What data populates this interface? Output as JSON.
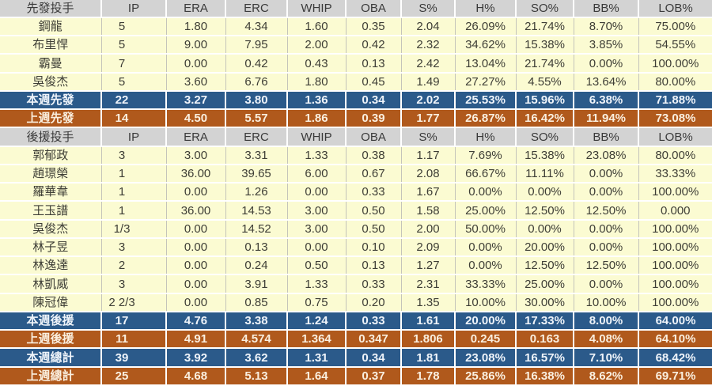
{
  "colors": {
    "header-bg": "#D3D3D3",
    "header-text": "#3A3A3A",
    "data-row-bg": "#FBFBD2",
    "data-text": "#3E3E36",
    "summary-week-bg": "#2B5A8A",
    "summary-week-text": "#EFF4FA",
    "summary-prev-bg": "#B0591C",
    "summary-prev-text": "#FAEFDF"
  },
  "chart_data": {
    "type": "table",
    "columns": [
      "先發投手",
      "IP",
      "ERA",
      "ERC",
      "WHIP",
      "OBA",
      "S%",
      "H%",
      "SO%",
      "BB%",
      "LOB%"
    ],
    "rows": [
      {
        "type": "header",
        "cells": [
          "先發投手",
          "IP",
          "ERA",
          "ERC",
          "WHIP",
          "OBA",
          "S%",
          "H%",
          "SO%",
          "BB%",
          "LOB%"
        ]
      },
      {
        "type": "player",
        "cells": [
          "鋼龍",
          "5",
          "1.80",
          "4.34",
          "1.60",
          "0.35",
          "2.04",
          "26.09%",
          "21.74%",
          "8.70%",
          "75.00%"
        ]
      },
      {
        "type": "player",
        "cells": [
          "布里悍",
          "5",
          "9.00",
          "7.95",
          "2.00",
          "0.42",
          "2.32",
          "34.62%",
          "15.38%",
          "3.85%",
          "54.55%"
        ]
      },
      {
        "type": "player",
        "cells": [
          "霸曼",
          "7",
          "0.00",
          "0.42",
          "0.43",
          "0.13",
          "2.42",
          "13.04%",
          "21.74%",
          "0.00%",
          "100.00%"
        ]
      },
      {
        "type": "player",
        "cells": [
          "吳俊杰",
          "5",
          "3.60",
          "6.76",
          "1.80",
          "0.45",
          "1.49",
          "27.27%",
          "4.55%",
          "13.64%",
          "80.00%"
        ]
      },
      {
        "type": "week",
        "cells": [
          "本週先發",
          "22",
          "3.27",
          "3.80",
          "1.36",
          "0.34",
          "2.02",
          "25.53%",
          "15.96%",
          "6.38%",
          "71.88%"
        ]
      },
      {
        "type": "prev",
        "cells": [
          "上週先發",
          "14",
          "4.50",
          "5.57",
          "1.86",
          "0.39",
          "1.77",
          "26.87%",
          "16.42%",
          "11.94%",
          "73.08%"
        ]
      },
      {
        "type": "header",
        "cells": [
          "後援投手",
          "IP",
          "ERA",
          "ERC",
          "WHIP",
          "OBA",
          "S%",
          "H%",
          "SO%",
          "BB%",
          "LOB%"
        ]
      },
      {
        "type": "player",
        "cells": [
          "郭郁政",
          "3",
          "3.00",
          "3.31",
          "1.33",
          "0.38",
          "1.17",
          "7.69%",
          "15.38%",
          "23.08%",
          "80.00%"
        ]
      },
      {
        "type": "player",
        "cells": [
          "趙璟榮",
          "1",
          "36.00",
          "39.65",
          "6.00",
          "0.67",
          "2.08",
          "66.67%",
          "11.11%",
          "0.00%",
          "33.33%"
        ]
      },
      {
        "type": "player",
        "cells": [
          "羅華韋",
          "1",
          "0.00",
          "1.26",
          "0.00",
          "0.33",
          "1.67",
          "0.00%",
          "0.00%",
          "0.00%",
          "100.00%"
        ]
      },
      {
        "type": "player",
        "cells": [
          "王玉譜",
          "1",
          "36.00",
          "14.53",
          "3.00",
          "0.50",
          "1.58",
          "25.00%",
          "12.50%",
          "12.50%",
          "0.000"
        ]
      },
      {
        "type": "player",
        "cells": [
          "吳俊杰",
          "1/3",
          "0.00",
          "14.52",
          "3.00",
          "0.50",
          "2.00",
          "50.00%",
          "0.00%",
          "0.00%",
          "100.00%"
        ]
      },
      {
        "type": "player",
        "cells": [
          "林子昱",
          "3",
          "0.00",
          "0.13",
          "0.00",
          "0.10",
          "2.09",
          "0.00%",
          "20.00%",
          "0.00%",
          "100.00%"
        ]
      },
      {
        "type": "player",
        "cells": [
          "林逸達",
          "2",
          "0.00",
          "0.24",
          "0.50",
          "0.13",
          "1.27",
          "0.00%",
          "12.50%",
          "12.50%",
          "100.00%"
        ]
      },
      {
        "type": "player",
        "cells": [
          "林凱威",
          "3",
          "0.00",
          "3.91",
          "1.33",
          "0.33",
          "2.31",
          "33.33%",
          "25.00%",
          "0.00%",
          "100.00%"
        ]
      },
      {
        "type": "player",
        "cells": [
          "陳冠偉",
          "2 2/3",
          "0.00",
          "0.85",
          "0.75",
          "0.20",
          "1.35",
          "10.00%",
          "30.00%",
          "10.00%",
          "100.00%"
        ]
      },
      {
        "type": "week",
        "cells": [
          "本週後援",
          "17",
          "4.76",
          "3.38",
          "1.24",
          "0.33",
          "1.61",
          "20.00%",
          "17.33%",
          "8.00%",
          "64.00%"
        ]
      },
      {
        "type": "prev",
        "cells": [
          "上週後援",
          "11",
          "4.91",
          "4.574",
          "1.364",
          "0.347",
          "1.806",
          "0.245",
          "0.163",
          "4.08%",
          "64.10%"
        ]
      },
      {
        "type": "week",
        "cells": [
          "本週總計",
          "39",
          "3.92",
          "3.62",
          "1.31",
          "0.34",
          "1.81",
          "23.08%",
          "16.57%",
          "7.10%",
          "68.42%"
        ]
      },
      {
        "type": "prev",
        "cells": [
          "上週總計",
          "25",
          "4.68",
          "5.13",
          "1.64",
          "0.37",
          "1.78",
          "25.86%",
          "16.38%",
          "8.62%",
          "69.71%"
        ]
      }
    ]
  }
}
